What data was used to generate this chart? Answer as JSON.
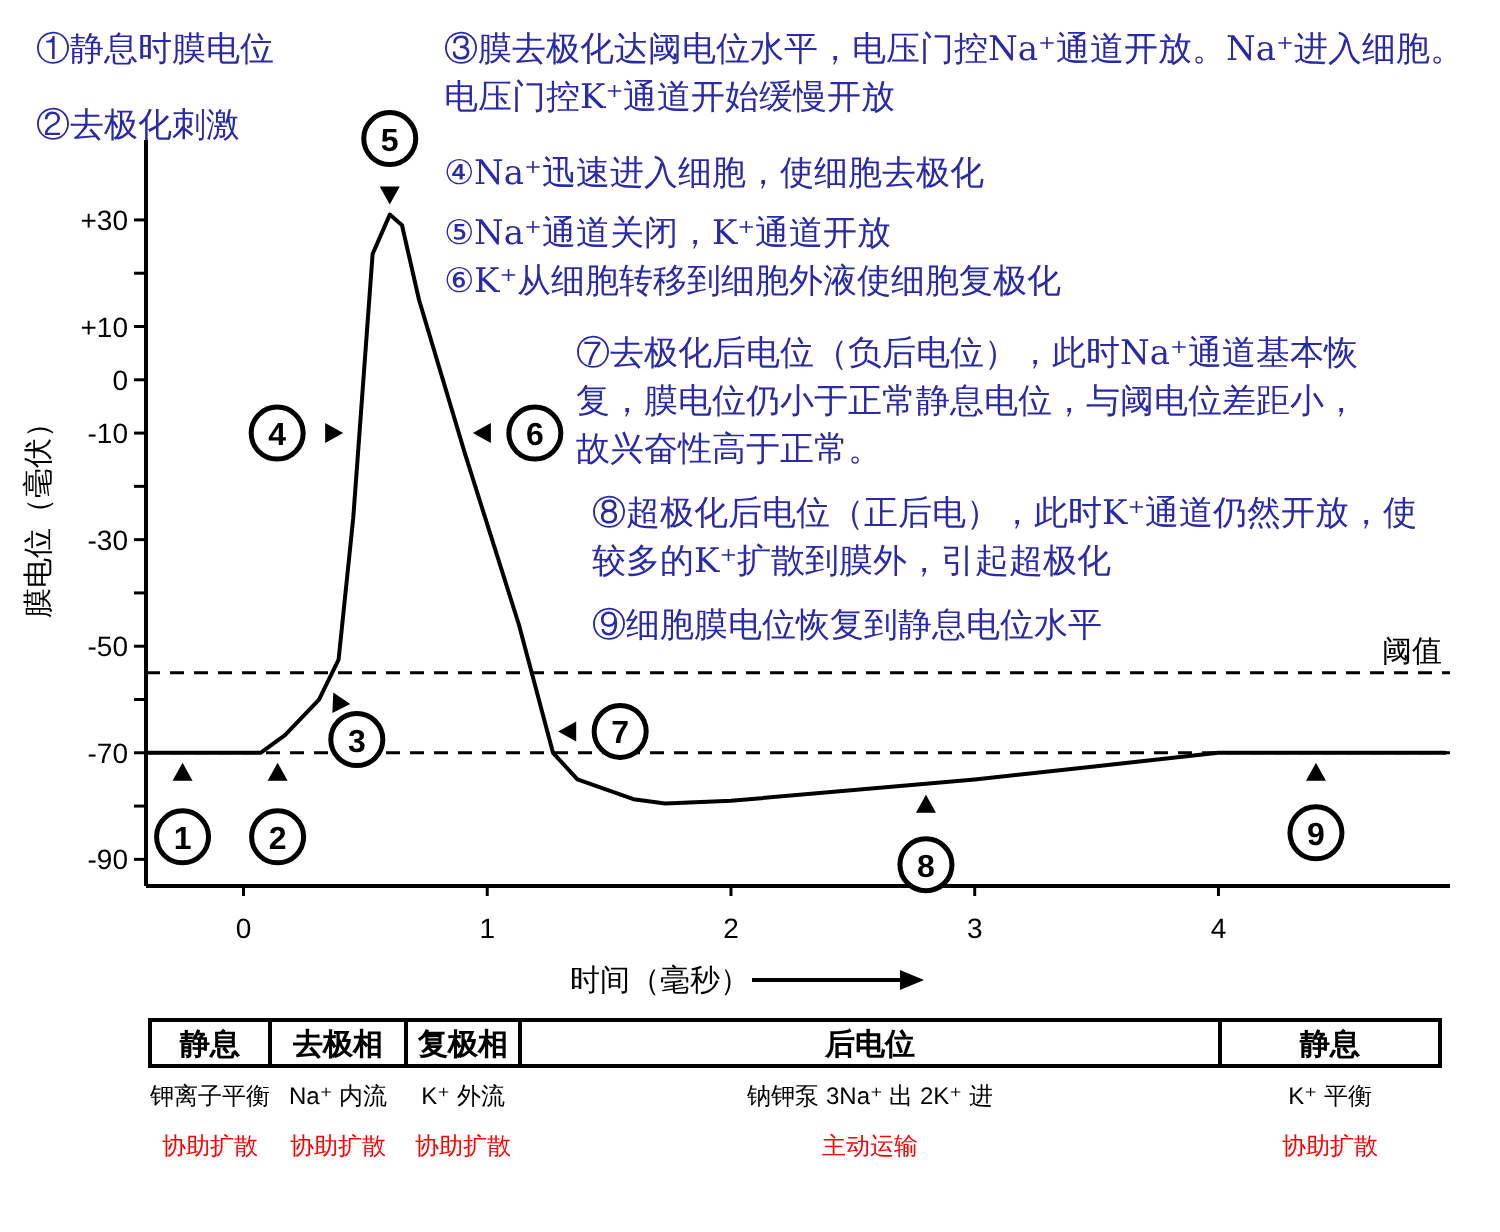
{
  "chart_data": {
    "type": "line",
    "xlabel": "时间（毫秒）",
    "ylabel": "膜电位（毫伏）",
    "xlim": [
      -0.4,
      4.95
    ],
    "ylim": [
      -95,
      45
    ],
    "xticks": [
      0,
      1,
      2,
      3,
      4
    ],
    "yticks": [
      {
        "value": 30,
        "label": "+30"
      },
      {
        "value": 20,
        "label": null
      },
      {
        "value": 10,
        "label": "+10"
      },
      0,
      -10,
      {
        "value": -20,
        "label": null
      },
      -30,
      {
        "value": -40,
        "label": null
      },
      -50,
      {
        "value": -60,
        "label": null
      },
      -70,
      {
        "value": -80,
        "label": null
      },
      -90
    ],
    "x": [
      -0.4,
      0.07,
      0.17,
      0.31,
      0.39,
      0.45,
      0.49,
      0.53,
      0.6,
      0.65,
      0.72,
      0.91,
      1.13,
      1.27,
      1.37,
      1.6,
      1.73,
      2,
      3,
      3.5,
      4,
      4.93
    ],
    "series": [
      {
        "color": "#000000",
        "values": [
          -70,
          -70,
          -66.7,
          -60,
          -52.5,
          -26,
          -1,
          23.6,
          31,
          29,
          15,
          -14,
          -46,
          -70,
          -75,
          -78.7,
          -79.5,
          -79,
          -75,
          -72.5,
          -70,
          -70
        ]
      }
    ],
    "ref_lines": [
      {
        "axis": "y",
        "value": -55,
        "label": "阈值",
        "line_style": "dashed"
      },
      {
        "axis": "y",
        "value": -70,
        "line_style": "dashed"
      }
    ],
    "annotations": [
      {
        "text": "1",
        "x": -0.25,
        "y": -70
      },
      {
        "text": "2",
        "x": 0.14,
        "y": -70
      },
      {
        "text": "3",
        "x": 0.35,
        "y": -57
      },
      {
        "text": "4",
        "x": 0.45,
        "y": -10
      },
      {
        "text": "5",
        "x": 0.6,
        "y": 31
      },
      {
        "text": "6",
        "x": 0.9,
        "y": -10
      },
      {
        "text": "7",
        "x": 1.25,
        "y": -66
      },
      {
        "text": "8",
        "x": 2.8,
        "y": -76
      },
      {
        "text": "9",
        "x": 4.4,
        "y": -70
      },
      "①静息时膜电位",
      "②去极化刺激",
      "③膜去极化达阈电位水平，电压门控Na⁺通道开放。Na⁺进入细胞。电压门控K⁺通道开始缓慢开放",
      "④Na⁺迅速进入细胞，使细胞去极化",
      "⑤Na⁺通道关闭，K⁺通道开放",
      "⑥K⁺从细胞转移到细胞外液使细胞复极化",
      "⑦去极化后电位（负后电位），此时Na⁺通道基本恢复，膜电位仍小于正常静息电位，与阈电位差距小，故兴奋性高于正常。",
      "⑧超极化后电位（正后电），此时K⁺通道仍然开放，使较多的K⁺扩散到膜外，引起超极化",
      "⑨细胞膜电位恢复到静息电位水平",
      "静息",
      "去极相",
      "复极相",
      "后电位",
      "静息",
      "钾离子平衡",
      "Na⁺ 内流",
      "K⁺ 外流",
      "钠钾泵 3Na⁺ 出 2K⁺ 进",
      "K⁺ 平衡",
      "协助扩散",
      "协助扩散",
      "协助扩散",
      "主动运输",
      "协助扩散"
    ]
  }
}
